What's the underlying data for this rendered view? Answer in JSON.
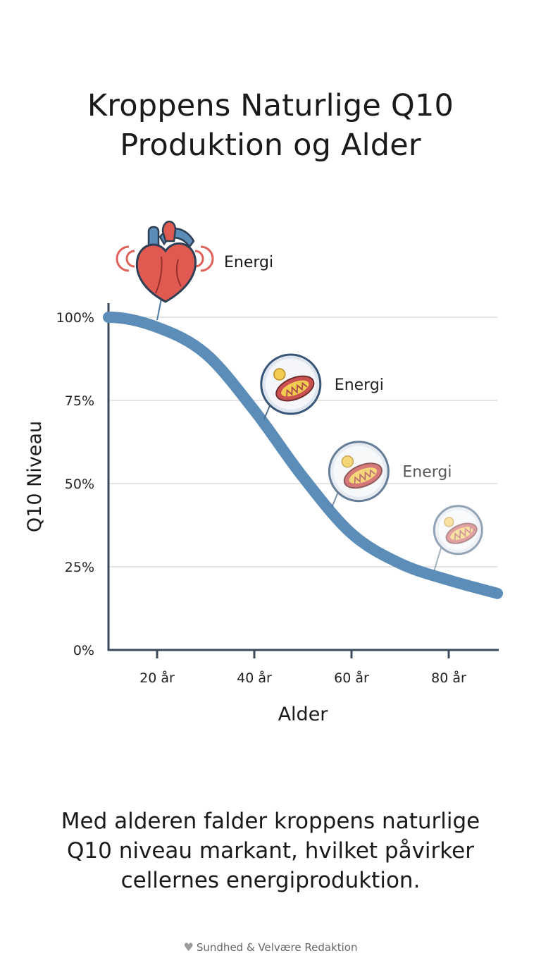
{
  "title": {
    "line1": "Kroppens Naturlige Q10",
    "line2": "Produktion og Alder"
  },
  "chart_data": {
    "type": "line",
    "x": [
      10,
      20,
      30,
      40,
      50,
      60,
      70,
      80,
      90
    ],
    "series": [
      {
        "name": "Q10 Niveau",
        "values": [
          100,
          97,
          89,
          72,
          52,
          35,
          26,
          21,
          17
        ]
      }
    ],
    "xlabel": "Alder",
    "ylabel": "Q10 Niveau",
    "xlim": [
      10,
      90
    ],
    "ylim": [
      0,
      100
    ],
    "x_ticks": [
      {
        "value": 20,
        "label": "20 år"
      },
      {
        "value": 40,
        "label": "40 år"
      },
      {
        "value": 60,
        "label": "60 år"
      },
      {
        "value": 80,
        "label": "80 år"
      }
    ],
    "y_ticks": [
      {
        "value": 0,
        "label": "0%"
      },
      {
        "value": 25,
        "label": "25%"
      },
      {
        "value": 50,
        "label": "50%"
      },
      {
        "value": 75,
        "label": "75%"
      },
      {
        "value": 100,
        "label": "100%"
      }
    ],
    "grid": true,
    "line_color": "#5b8db8",
    "annotations": [
      {
        "icon": "heart-icon",
        "x": 20,
        "label": "Energi",
        "strength": 1.0
      },
      {
        "icon": "mitochondria-icon",
        "x": 42,
        "label": "Energi",
        "strength": 0.95
      },
      {
        "icon": "mitochondria-icon",
        "x": 56,
        "label": "Energi",
        "strength": 0.65
      },
      {
        "icon": "mitochondria-icon",
        "x": 77,
        "label": "",
        "strength": 0.35
      }
    ]
  },
  "caption": {
    "line1": "Med alderen falder kroppens naturlige",
    "line2": "Q10 niveau markant, hvilket påvirker",
    "line3": "cellernes energiproduktion."
  },
  "footer": {
    "icon": "heart-pulse-icon",
    "text": "Sundhed & Velvære Redaktion"
  }
}
